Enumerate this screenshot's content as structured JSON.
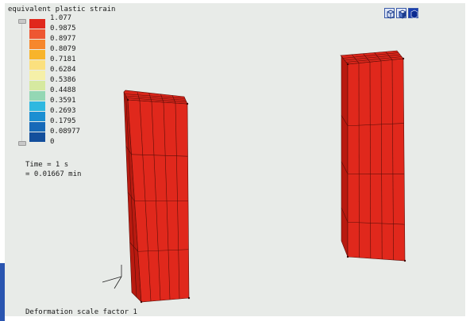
{
  "legend": {
    "title": "equivalent plastic strain",
    "ticks": [
      "1.077",
      "0.9875",
      "0.8977",
      "0.8079",
      "0.7181",
      "0.6284",
      "0.5386",
      "0.4488",
      "0.3591",
      "0.2693",
      "0.1795",
      "0.08977",
      "0"
    ],
    "colors": [
      "#e0281c",
      "#ee5732",
      "#f6872c",
      "#f8b42b",
      "#fbe07e",
      "#f5f0a8",
      "#d6e9a0",
      "#94d7b4",
      "#2fb8e0",
      "#1c8fd2",
      "#1669b8",
      "#134f9c"
    ]
  },
  "time": {
    "line1": "Time = 1 s",
    "line2": "= 0.01667 min"
  },
  "deformation": "Deformation scale factor 1",
  "view_buttons": [
    {
      "name": "view-cube-outline-icon"
    },
    {
      "name": "view-cube-shaded-icon"
    },
    {
      "name": "view-cube-solid-icon"
    }
  ],
  "model_color": "#e0281c"
}
